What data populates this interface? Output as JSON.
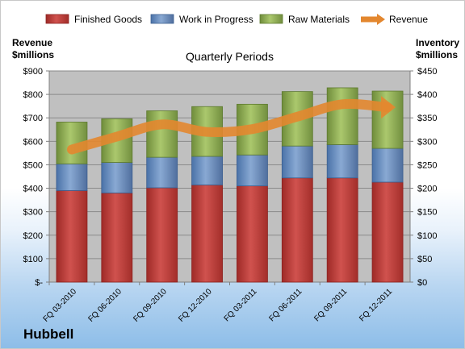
{
  "chart_data": {
    "type": "bar",
    "stacked": true,
    "title": "Quarterly Periods",
    "company": "Hubbell",
    "left_axis_label": [
      "Revenue",
      "$millions"
    ],
    "right_axis_label": [
      "Inventory",
      "$millions"
    ],
    "categories": [
      "FQ 03-2010",
      "FQ 06-2010",
      "FQ 09-2010",
      "FQ 12-2010",
      "FQ 03-2011",
      "FQ 06-2011",
      "FQ 09-2011",
      "FQ 12-2011"
    ],
    "left_ticks": [
      "$-",
      "$100",
      "$200",
      "$300",
      "$400",
      "$500",
      "$600",
      "$700",
      "$800",
      "$900"
    ],
    "right_ticks": [
      "$0",
      "$50",
      "$100",
      "$150",
      "$200",
      "$250",
      "$300",
      "$350",
      "$400",
      "$450"
    ],
    "ylim_inventory": [
      0,
      450
    ],
    "ylim_revenue": [
      0,
      900
    ],
    "series": [
      {
        "name": "Finished Goods",
        "axis": "inventory",
        "color": "#c0504d",
        "values": [
          195,
          190,
          201,
          207,
          205,
          222,
          222,
          213
        ]
      },
      {
        "name": "Work in Progress",
        "axis": "inventory",
        "color": "#4f81bd",
        "values": [
          57,
          65,
          65,
          61,
          66,
          68,
          71,
          72
        ]
      },
      {
        "name": "Raw Materials",
        "axis": "inventory",
        "color": "#9bbb59",
        "values": [
          89,
          93,
          99,
          106,
          108,
          116,
          121,
          122
        ]
      },
      {
        "name": "Revenue",
        "axis": "revenue",
        "type": "line",
        "color": "#e3872f",
        "values": [
          565,
          620,
          672,
          640,
          652,
          705,
          758,
          745
        ]
      }
    ],
    "grid": true,
    "legend": "top"
  }
}
